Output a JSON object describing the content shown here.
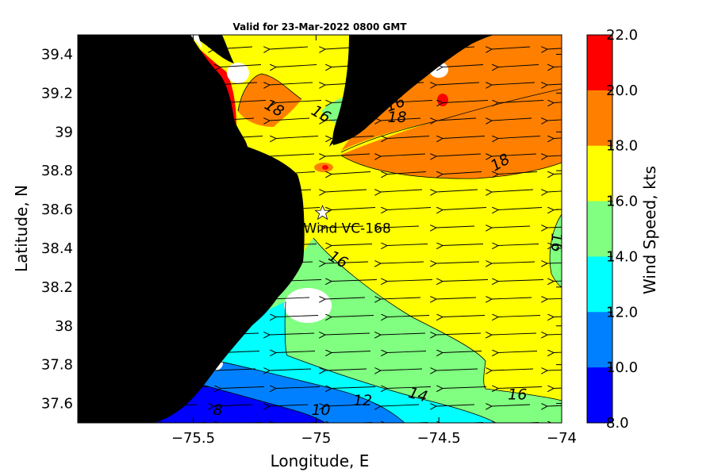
{
  "title": "Valid for 23-Mar-2022 0800 GMT",
  "map": {
    "x_axis_label": "Longitude, E",
    "y_axis_label": "Latitude, N",
    "x_ticks": [
      {
        "value": -75.5,
        "label": "−75.5"
      },
      {
        "value": -75.0,
        "label": "−75"
      },
      {
        "value": -74.5,
        "label": "−74.5"
      },
      {
        "value": -74.0,
        "label": "−74"
      }
    ],
    "y_ticks": [
      {
        "value": 39.4,
        "label": "39.4"
      },
      {
        "value": 39.2,
        "label": "39.2"
      },
      {
        "value": 39.0,
        "label": "39"
      },
      {
        "value": 38.8,
        "label": "38.8"
      },
      {
        "value": 38.6,
        "label": "38.6"
      },
      {
        "value": 38.4,
        "label": "38.4"
      },
      {
        "value": 38.2,
        "label": "38.2"
      },
      {
        "value": 38.0,
        "label": "38"
      },
      {
        "value": 37.8,
        "label": "37.8"
      },
      {
        "value": 37.6,
        "label": "37.6"
      }
    ],
    "lon_range": [
      -75.97,
      -74.0
    ],
    "lat_range": [
      37.5,
      39.5
    ],
    "site": {
      "label": "Wind VC-168",
      "lon": -74.98,
      "lat": 38.55
    },
    "contour_labels": [
      {
        "text": "18",
        "lon": -75.18,
        "lat": 39.1,
        "angle": 30
      },
      {
        "text": "16",
        "lon": -74.99,
        "lat": 39.07,
        "angle": 30
      },
      {
        "text": "16",
        "lon": -74.67,
        "lat": 39.12,
        "angle": -20
      },
      {
        "text": "18",
        "lon": -74.67,
        "lat": 39.05,
        "angle": 0
      },
      {
        "text": "18",
        "lon": -74.24,
        "lat": 38.82,
        "angle": -30
      },
      {
        "text": "16",
        "lon": -74.92,
        "lat": 38.32,
        "angle": 30
      },
      {
        "text": "16",
        "lon": -74.04,
        "lat": 38.43,
        "angle": 90
      },
      {
        "text": "16",
        "lon": -74.18,
        "lat": 37.62,
        "angle": 0
      },
      {
        "text": "14",
        "lon": -74.59,
        "lat": 37.62,
        "angle": 15
      },
      {
        "text": "12",
        "lon": -74.81,
        "lat": 37.59,
        "angle": 0
      },
      {
        "text": "10",
        "lon": -74.98,
        "lat": 37.54,
        "angle": 0
      },
      {
        "text": "8",
        "lon": -75.4,
        "lat": 37.54,
        "angle": 0
      }
    ],
    "wind_direction_note_free": true
  },
  "colorbar": {
    "label": "Wind Speed, kts",
    "ticks": [
      "22.0",
      "20.0",
      "18.0",
      "16.0",
      "14.0",
      "12.0",
      "10.0",
      "8.0"
    ],
    "colors": [
      "#ff0000",
      "#ff8000",
      "#ffff00",
      "#80ff80",
      "#00ffff",
      "#0080ff",
      "#0000ff"
    ],
    "range": [
      8.0,
      22.0
    ]
  },
  "colors": {
    "land": "#000000",
    "nodata": "#ffffff",
    "arrow": "#000000"
  }
}
